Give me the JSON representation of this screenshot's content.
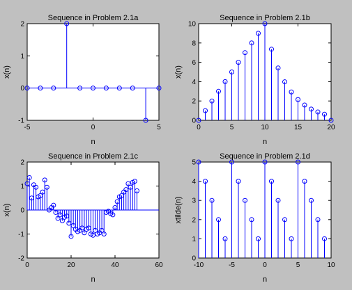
{
  "chart_data": [
    {
      "type": "stem",
      "title": "Sequence in Problem 2.1a",
      "xlabel": "n",
      "ylabel": "x(n)",
      "xlim": [
        -5,
        5
      ],
      "ylim": [
        -1,
        2
      ],
      "xticks": [
        -5,
        0,
        5
      ],
      "yticks": [
        -1,
        0,
        1,
        2
      ],
      "x": [
        -5,
        -4,
        -3,
        -2,
        -1,
        0,
        1,
        2,
        3,
        4,
        5
      ],
      "y": [
        0,
        0,
        0,
        2,
        0,
        0,
        0,
        0,
        0,
        -1,
        0
      ],
      "color": "#0000ff"
    },
    {
      "type": "stem",
      "title": "Sequence in Problem 2.1b",
      "xlabel": "n",
      "ylabel": "x(n)",
      "xlim": [
        0,
        20
      ],
      "ylim": [
        0,
        10
      ],
      "xticks": [
        0,
        5,
        10,
        15,
        20
      ],
      "yticks": [
        0,
        2,
        4,
        6,
        8,
        10
      ],
      "x": [
        0,
        1,
        2,
        3,
        4,
        5,
        6,
        7,
        8,
        9,
        10,
        11,
        12,
        13,
        14,
        15,
        16,
        17,
        18,
        19,
        20
      ],
      "y": [
        0,
        1,
        2,
        3,
        4,
        5,
        6,
        7,
        8,
        9,
        10,
        7.36,
        5.41,
        3.98,
        2.93,
        2.15,
        1.58,
        1.16,
        0.86,
        0.63,
        0
      ],
      "color": "#0000ff"
    },
    {
      "type": "stem",
      "title": "Sequence in Problem 2.1c",
      "xlabel": "n",
      "ylabel": "x(n)",
      "xlim": [
        0,
        60
      ],
      "ylim": [
        -2,
        2
      ],
      "xticks": [
        0,
        20,
        40,
        60
      ],
      "yticks": [
        -2,
        -1,
        0,
        1,
        2
      ],
      "x": [
        0,
        1,
        2,
        3,
        4,
        5,
        6,
        7,
        8,
        9,
        10,
        11,
        12,
        13,
        14,
        15,
        16,
        17,
        18,
        19,
        20,
        21,
        22,
        23,
        24,
        25,
        26,
        27,
        28,
        29,
        30,
        31,
        32,
        33,
        34,
        35,
        36,
        37,
        38,
        39,
        40,
        41,
        42,
        43,
        44,
        45,
        46,
        47,
        48,
        49,
        50
      ],
      "y": [
        1.1,
        1.35,
        0.5,
        1.05,
        0.95,
        0.55,
        0.6,
        0.75,
        1.25,
        0.95,
        0.0,
        0.1,
        0.2,
        -0.1,
        -0.35,
        -0.2,
        -0.45,
        -0.3,
        -0.25,
        -0.55,
        -1.1,
        -0.65,
        -0.8,
        -0.9,
        -0.85,
        -0.75,
        -0.95,
        -0.8,
        -0.75,
        -1.0,
        -1.05,
        -0.85,
        -1.0,
        -0.95,
        -0.85,
        -1.0,
        -0.1,
        -0.05,
        -0.15,
        -0.2,
        0.1,
        0.35,
        0.55,
        0.6,
        0.75,
        0.85,
        1.1,
        0.95,
        1.15,
        1.2,
        0.8
      ],
      "color": "#0000ff"
    },
    {
      "type": "stem",
      "title": "Sequence in Problem 2.1d",
      "xlabel": "n",
      "ylabel": "xtilde(n)",
      "xlim": [
        -10,
        10
      ],
      "ylim": [
        0,
        5
      ],
      "xticks": [
        -10,
        -5,
        0,
        5,
        10
      ],
      "yticks": [
        0,
        1,
        2,
        3,
        4,
        5
      ],
      "x": [
        -10,
        -9,
        -8,
        -7,
        -6,
        -5,
        -4,
        -3,
        -2,
        -1,
        0,
        1,
        2,
        3,
        4,
        5,
        6,
        7,
        8,
        9
      ],
      "y": [
        5,
        4,
        3,
        2,
        1,
        5,
        4,
        3,
        2,
        1,
        5,
        4,
        3,
        2,
        1,
        5,
        4,
        3,
        2,
        1
      ],
      "color": "#0000ff"
    }
  ]
}
